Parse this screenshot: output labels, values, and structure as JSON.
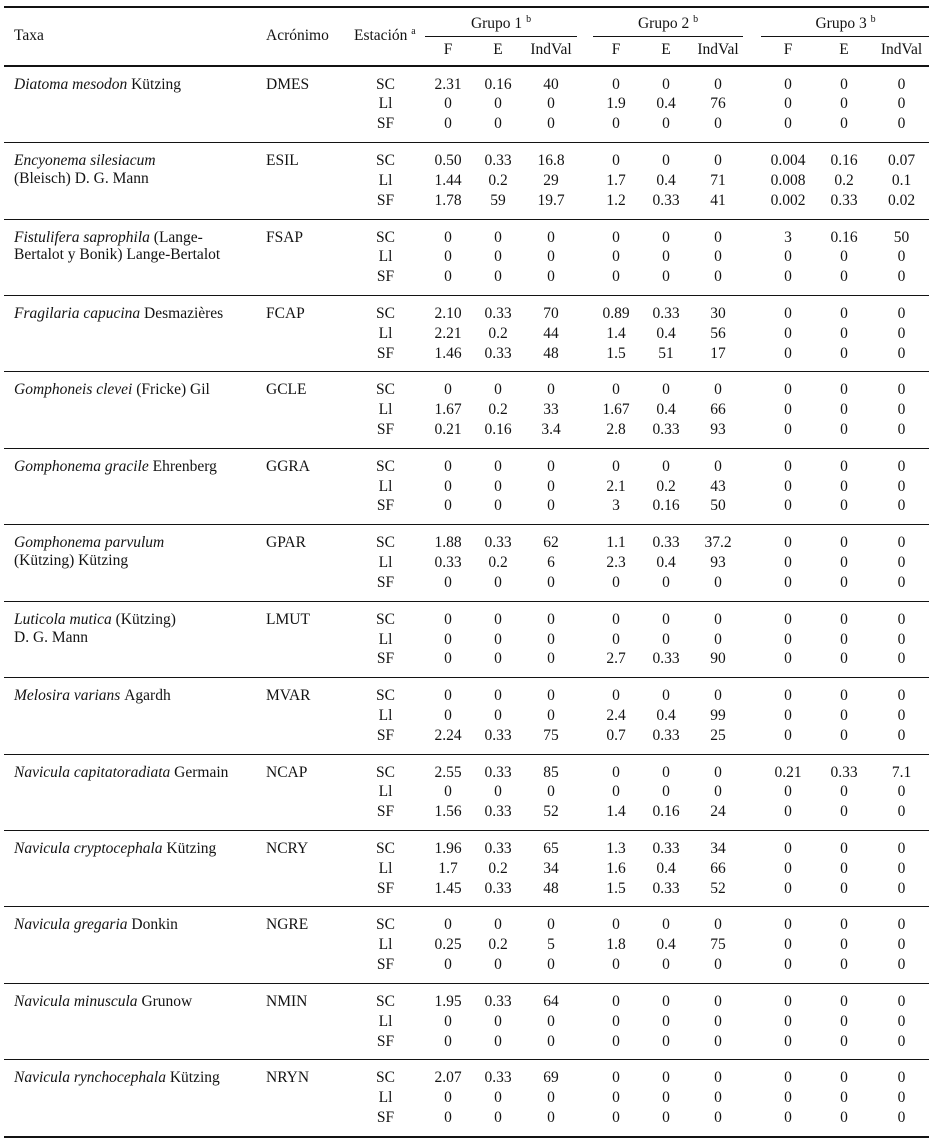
{
  "header": {
    "taxa": "Taxa",
    "acronimo": "Acrónimo",
    "estacion": "Estación",
    "estacion_sup": "a",
    "groups": [
      {
        "label": "Grupo 1",
        "sup": "b"
      },
      {
        "label": "Grupo 2",
        "sup": "b"
      },
      {
        "label": "Grupo 3",
        "sup": "b"
      }
    ],
    "sub": [
      "F",
      "E",
      "IndVal"
    ]
  },
  "colors": {
    "text": "#131313",
    "rule": "#131313",
    "background": "#ffffff"
  },
  "species": [
    {
      "acronimo": "DMES",
      "name_italic": "Diatoma mesodon",
      "name_regular": "Kützing",
      "name_line2": "",
      "stations": [
        {
          "label": "SC",
          "values": [
            "2.31",
            "0.16",
            "40",
            "0",
            "0",
            "0",
            "0",
            "0",
            "0"
          ]
        },
        {
          "label": "Ll",
          "values": [
            "0",
            "0",
            "0",
            "1.9",
            "0.4",
            "76",
            "0",
            "0",
            "0"
          ]
        },
        {
          "label": "SF",
          "values": [
            "0",
            "0",
            "0",
            "0",
            "0",
            "0",
            "0",
            "0",
            "0"
          ]
        }
      ]
    },
    {
      "acronimo": "ESIL",
      "name_italic": "Encyonema silesiacum",
      "name_regular": "",
      "name_line2": "(Bleisch) D. G. Mann",
      "stations": [
        {
          "label": "SC",
          "values": [
            "0.50",
            "0.33",
            "16.8",
            "0",
            "0",
            "0",
            "0.004",
            "0.16",
            "0.07"
          ]
        },
        {
          "label": "Ll",
          "values": [
            "1.44",
            "0.2",
            "29",
            "1.7",
            "0.4",
            "71",
            "0.008",
            "0.2",
            "0.1"
          ]
        },
        {
          "label": "SF",
          "values": [
            "1.78",
            "59",
            "19.7",
            "1.2",
            "0.33",
            "41",
            "0.002",
            "0.33",
            "0.02"
          ]
        }
      ]
    },
    {
      "acronimo": "FSAP",
      "name_italic": "Fistulifera saprophila",
      "name_regular": "(Lange-",
      "name_line2": "Bertalot y Bonik) Lange-Bertalot",
      "stations": [
        {
          "label": "SC",
          "values": [
            "0",
            "0",
            "0",
            "0",
            "0",
            "0",
            "3",
            "0.16",
            "50"
          ]
        },
        {
          "label": "Ll",
          "values": [
            "0",
            "0",
            "0",
            "0",
            "0",
            "0",
            "0",
            "0",
            "0"
          ]
        },
        {
          "label": "SF",
          "values": [
            "0",
            "0",
            "0",
            "0",
            "0",
            "0",
            "0",
            "0",
            "0"
          ]
        }
      ]
    },
    {
      "acronimo": "FCAP",
      "name_italic": "Fragilaria capucina",
      "name_regular": "Desmazières",
      "name_line2": "",
      "stations": [
        {
          "label": "SC",
          "values": [
            "2.10",
            "0.33",
            "70",
            "0.89",
            "0.33",
            "30",
            "0",
            "0",
            "0"
          ]
        },
        {
          "label": "Ll",
          "values": [
            "2.21",
            "0.2",
            "44",
            "1.4",
            "0.4",
            "56",
            "0",
            "0",
            "0"
          ]
        },
        {
          "label": "SF",
          "values": [
            "1.46",
            "0.33",
            "48",
            "1.5",
            "51",
            "17",
            "0",
            "0",
            "0"
          ]
        }
      ]
    },
    {
      "acronimo": "GCLE",
      "name_italic": "Gomphoneis clevei",
      "name_regular": "(Fricke) Gil",
      "name_line2": "",
      "stations": [
        {
          "label": "SC",
          "values": [
            "0",
            "0",
            "0",
            "0",
            "0",
            "0",
            "0",
            "0",
            "0"
          ]
        },
        {
          "label": "Ll",
          "values": [
            "1.67",
            "0.2",
            "33",
            "1.67",
            "0.4",
            "66",
            "0",
            "0",
            "0"
          ]
        },
        {
          "label": "SF",
          "values": [
            "0.21",
            "0.16",
            "3.4",
            "2.8",
            "0.33",
            "93",
            "0",
            "0",
            "0"
          ]
        }
      ]
    },
    {
      "acronimo": "GGRA",
      "name_italic": "Gomphonema gracile",
      "name_regular": "Ehrenberg",
      "name_line2": "",
      "stations": [
        {
          "label": "SC",
          "values": [
            "0",
            "0",
            "0",
            "0",
            "0",
            "0",
            "0",
            "0",
            "0"
          ]
        },
        {
          "label": "Ll",
          "values": [
            "0",
            "0",
            "0",
            "2.1",
            "0.2",
            "43",
            "0",
            "0",
            "0"
          ]
        },
        {
          "label": "SF",
          "values": [
            "0",
            "0",
            "0",
            "3",
            "0.16",
            "50",
            "0",
            "0",
            "0"
          ]
        }
      ]
    },
    {
      "acronimo": "GPAR",
      "name_italic": "Gomphonema parvulum",
      "name_regular": "",
      "name_line2": "(Kützing) Kützing",
      "stations": [
        {
          "label": "SC",
          "values": [
            "1.88",
            "0.33",
            "62",
            "1.1",
            "0.33",
            "37.2",
            "0",
            "0",
            "0"
          ]
        },
        {
          "label": "Ll",
          "values": [
            "0.33",
            "0.2",
            "6",
            "2.3",
            "0.4",
            "93",
            "0",
            "0",
            "0"
          ]
        },
        {
          "label": "SF",
          "values": [
            "0",
            "0",
            "0",
            "0",
            "0",
            "0",
            "0",
            "0",
            "0"
          ]
        }
      ]
    },
    {
      "acronimo": "LMUT",
      "name_italic": "Luticola mutica",
      "name_regular": "(Kützing)",
      "name_line2": "D. G. Mann",
      "stations": [
        {
          "label": "SC",
          "values": [
            "0",
            "0",
            "0",
            "0",
            "0",
            "0",
            "0",
            "0",
            "0"
          ]
        },
        {
          "label": "Ll",
          "values": [
            "0",
            "0",
            "0",
            "0",
            "0",
            "0",
            "0",
            "0",
            "0"
          ]
        },
        {
          "label": "SF",
          "values": [
            "0",
            "0",
            "0",
            "2.7",
            "0.33",
            "90",
            "0",
            "0",
            "0"
          ]
        }
      ]
    },
    {
      "acronimo": "MVAR",
      "name_italic": "Melosira varians",
      "name_regular": "Agardh",
      "name_line2": "",
      "stations": [
        {
          "label": "SC",
          "values": [
            "0",
            "0",
            "0",
            "0",
            "0",
            "0",
            "0",
            "0",
            "0"
          ]
        },
        {
          "label": "Ll",
          "values": [
            "0",
            "0",
            "0",
            "2.4",
            "0.4",
            "99",
            "0",
            "0",
            "0"
          ]
        },
        {
          "label": "SF",
          "values": [
            "2.24",
            "0.33",
            "75",
            "0.7",
            "0.33",
            "25",
            "0",
            "0",
            "0"
          ]
        }
      ]
    },
    {
      "acronimo": "NCAP",
      "name_italic": "Navicula capitatoradiata",
      "name_regular": "Germain",
      "name_line2": "",
      "stations": [
        {
          "label": "SC",
          "values": [
            "2.55",
            "0.33",
            "85",
            "0",
            "0",
            "0",
            "0.21",
            "0.33",
            "7.1"
          ]
        },
        {
          "label": "Ll",
          "values": [
            "0",
            "0",
            "0",
            "0",
            "0",
            "0",
            "0",
            "0",
            "0"
          ]
        },
        {
          "label": "SF",
          "values": [
            "1.56",
            "0.33",
            "52",
            "1.4",
            "0.16",
            "24",
            "0",
            "0",
            "0"
          ]
        }
      ]
    },
    {
      "acronimo": "NCRY",
      "name_italic": "Navicula cryptocephala",
      "name_regular": "Kützing",
      "name_line2": "",
      "stations": [
        {
          "label": "SC",
          "values": [
            "1.96",
            "0.33",
            "65",
            "1.3",
            "0.33",
            "34",
            "0",
            "0",
            "0"
          ]
        },
        {
          "label": "Ll",
          "values": [
            "1.7",
            "0.2",
            "34",
            "1.6",
            "0.4",
            "66",
            "0",
            "0",
            "0"
          ]
        },
        {
          "label": "SF",
          "values": [
            "1.45",
            "0.33",
            "48",
            "1.5",
            "0.33",
            "52",
            "0",
            "0",
            "0"
          ]
        }
      ]
    },
    {
      "acronimo": "NGRE",
      "name_italic": "Navicula gregaria",
      "name_regular": "Donkin",
      "name_line2": "",
      "stations": [
        {
          "label": "SC",
          "values": [
            "0",
            "0",
            "0",
            "0",
            "0",
            "0",
            "0",
            "0",
            "0"
          ]
        },
        {
          "label": "Ll",
          "values": [
            "0.25",
            "0.2",
            "5",
            "1.8",
            "0.4",
            "75",
            "0",
            "0",
            "0"
          ]
        },
        {
          "label": "SF",
          "values": [
            "0",
            "0",
            "0",
            "0",
            "0",
            "0",
            "0",
            "0",
            "0"
          ]
        }
      ]
    },
    {
      "acronimo": "NMIN",
      "name_italic": "Navicula minuscula",
      "name_regular": "Grunow",
      "name_line2": "",
      "stations": [
        {
          "label": "SC",
          "values": [
            "1.95",
            "0.33",
            "64",
            "0",
            "0",
            "0",
            "0",
            "0",
            "0"
          ]
        },
        {
          "label": "Ll",
          "values": [
            "0",
            "0",
            "0",
            "0",
            "0",
            "0",
            "0",
            "0",
            "0"
          ]
        },
        {
          "label": "SF",
          "values": [
            "0",
            "0",
            "0",
            "0",
            "0",
            "0",
            "0",
            "0",
            "0"
          ]
        }
      ]
    },
    {
      "acronimo": "NRYN",
      "name_italic": "Navicula rynchocephala",
      "name_regular": "Kützing",
      "name_line2": "",
      "stations": [
        {
          "label": "SC",
          "values": [
            "2.07",
            "0.33",
            "69",
            "0",
            "0",
            "0",
            "0",
            "0",
            "0"
          ]
        },
        {
          "label": "Ll",
          "values": [
            "0",
            "0",
            "0",
            "0",
            "0",
            "0",
            "0",
            "0",
            "0"
          ]
        },
        {
          "label": "SF",
          "values": [
            "0",
            "0",
            "0",
            "0",
            "0",
            "0",
            "0",
            "0",
            "0"
          ]
        }
      ]
    }
  ]
}
